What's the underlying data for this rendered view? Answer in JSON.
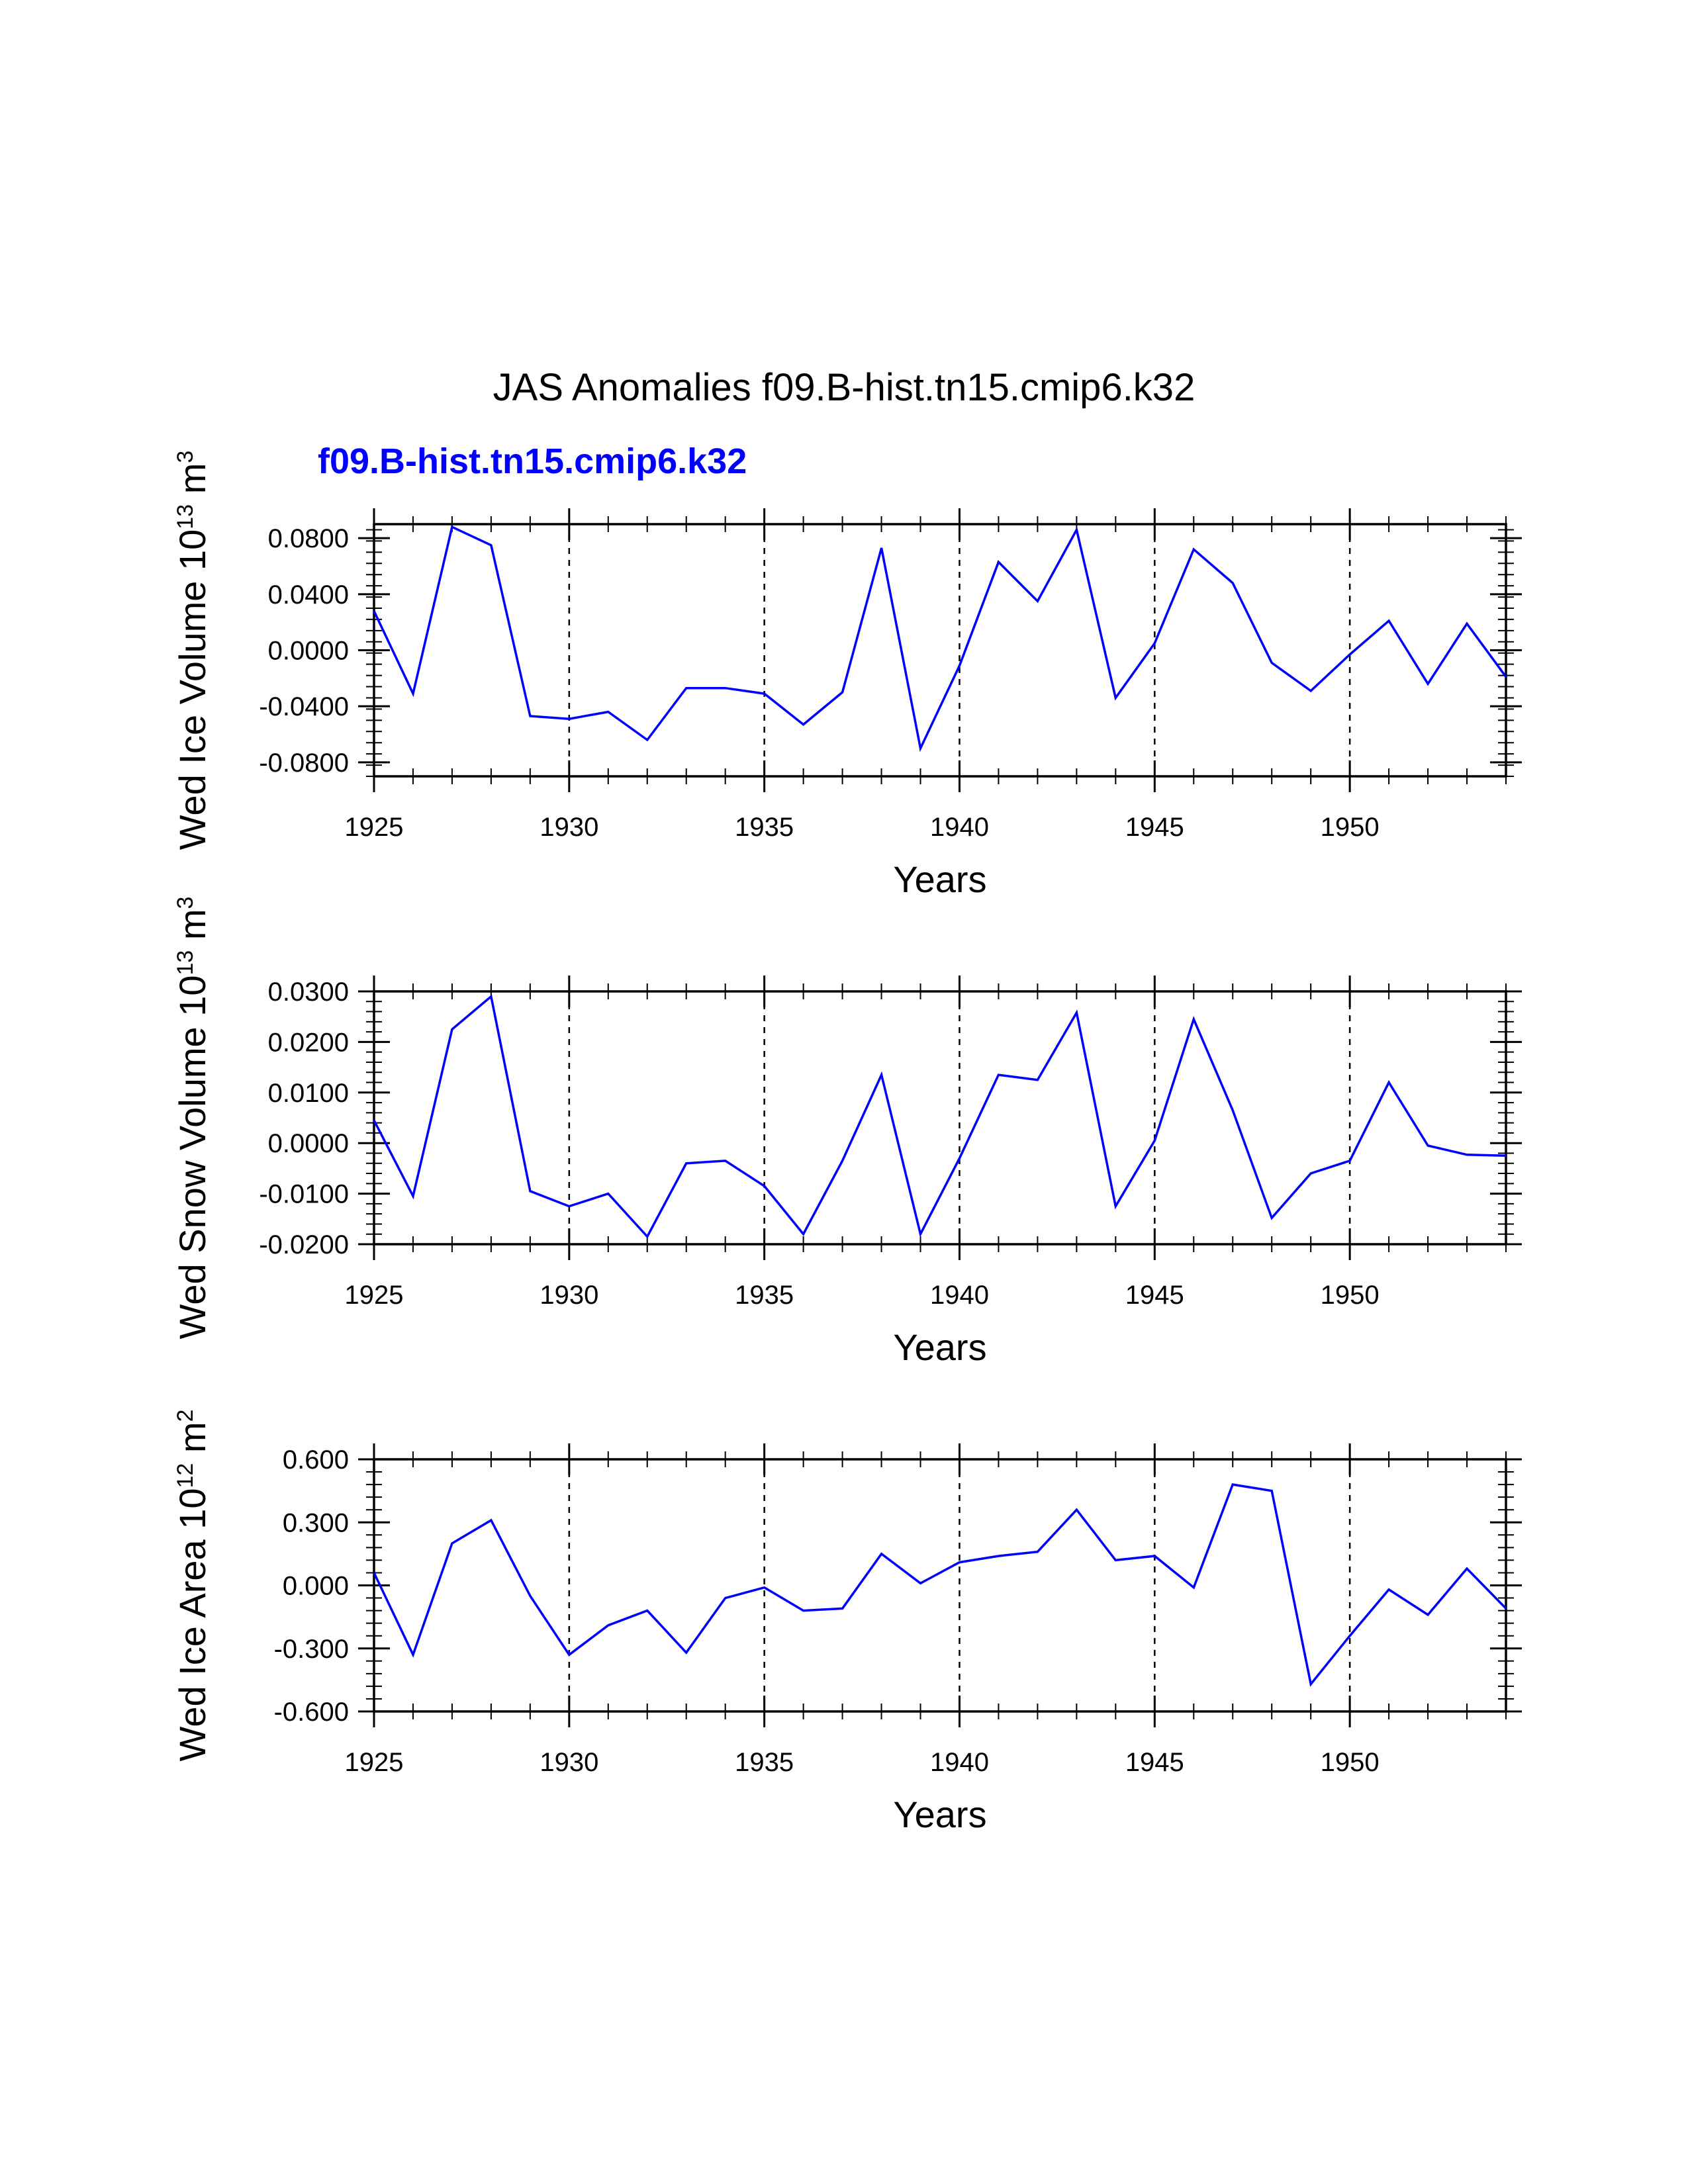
{
  "title": "JAS Anomalies f09.B-hist.tn15.cmip6.k32",
  "subtitle": "f09.B-hist.tn15.cmip6.k32",
  "colors": {
    "line": "#0000ff",
    "subtitle": "#0000ff",
    "axis": "#000000",
    "grid": "#000000"
  },
  "chart_data": [
    {
      "type": "line",
      "ylabel_main": "Wed Ice Volume 10",
      "ylabel_exp": "13",
      "ylabel_unit": " m",
      "ylabel_unit_exp": "3",
      "xlabel": "Years",
      "xlim": [
        1925,
        1954
      ],
      "ylim": [
        -0.09,
        0.09
      ],
      "yticks": [
        -0.08,
        -0.04,
        0.0,
        0.04,
        0.08
      ],
      "ytick_labels": [
        "-0.0800",
        "-0.0400",
        "0.0000",
        "0.0400",
        "0.0800"
      ],
      "xticks": [
        1925,
        1930,
        1935,
        1940,
        1945,
        1950
      ],
      "xtick_labels": [
        "1925",
        "1930",
        "1935",
        "1940",
        "1945",
        "1950"
      ],
      "grid_x": [
        1930,
        1935,
        1940,
        1945,
        1950
      ],
      "series": [
        {
          "name": "f09.B-hist.tn15.cmip6.k32",
          "x": [
            1925,
            1926,
            1927,
            1928,
            1929,
            1930,
            1931,
            1932,
            1933,
            1934,
            1935,
            1936,
            1937,
            1938,
            1939,
            1940,
            1941,
            1942,
            1943,
            1944,
            1945,
            1946,
            1947,
            1948,
            1949,
            1950,
            1951,
            1952,
            1953,
            1954
          ],
          "values": [
            0.028,
            -0.031,
            0.088,
            0.075,
            -0.047,
            -0.049,
            -0.044,
            -0.064,
            -0.027,
            -0.027,
            -0.031,
            -0.053,
            -0.03,
            0.073,
            -0.07,
            -0.011,
            0.063,
            0.035,
            0.086,
            -0.034,
            0.005,
            0.072,
            0.048,
            -0.009,
            -0.029,
            -0.003,
            0.021,
            -0.024,
            0.019,
            -0.019
          ]
        }
      ]
    },
    {
      "type": "line",
      "ylabel_main": "Wed Snow Volume 10",
      "ylabel_exp": "13",
      "ylabel_unit": " m",
      "ylabel_unit_exp": "3",
      "xlabel": "Years",
      "xlim": [
        1925,
        1954
      ],
      "ylim": [
        -0.02,
        0.03
      ],
      "yticks": [
        -0.02,
        -0.01,
        0.0,
        0.01,
        0.02,
        0.03
      ],
      "ytick_labels": [
        "-0.0200",
        "-0.0100",
        "0.0000",
        "0.0100",
        "0.0200",
        "0.0300"
      ],
      "xticks": [
        1925,
        1930,
        1935,
        1940,
        1945,
        1950
      ],
      "xtick_labels": [
        "1925",
        "1930",
        "1935",
        "1940",
        "1945",
        "1950"
      ],
      "grid_x": [
        1930,
        1935,
        1940,
        1945,
        1950
      ],
      "series": [
        {
          "name": "f09.B-hist.tn15.cmip6.k32",
          "x": [
            1925,
            1926,
            1927,
            1928,
            1929,
            1930,
            1931,
            1932,
            1933,
            1934,
            1935,
            1936,
            1937,
            1938,
            1939,
            1940,
            1941,
            1942,
            1943,
            1944,
            1945,
            1946,
            1947,
            1948,
            1949,
            1950,
            1951,
            1952,
            1953,
            1954
          ],
          "values": [
            0.0045,
            -0.0105,
            0.0225,
            0.029,
            -0.0095,
            -0.0125,
            -0.01,
            -0.0185,
            -0.004,
            -0.0035,
            -0.0085,
            -0.018,
            -0.0035,
            0.0135,
            -0.018,
            -0.003,
            0.0135,
            0.0125,
            0.0258,
            -0.0125,
            0.0005,
            0.0245,
            0.0065,
            -0.0148,
            -0.006,
            -0.0035,
            0.012,
            -0.0005,
            -0.0023,
            -0.0025
          ]
        }
      ]
    },
    {
      "type": "line",
      "ylabel_main": "Wed Ice Area 10",
      "ylabel_exp": "12",
      "ylabel_unit": " m",
      "ylabel_unit_exp": "2",
      "xlabel": "Years",
      "xlim": [
        1925,
        1954
      ],
      "ylim": [
        -0.6,
        0.6
      ],
      "yticks": [
        -0.6,
        -0.3,
        0.0,
        0.3,
        0.6
      ],
      "ytick_labels": [
        "-0.600",
        "-0.300",
        "0.000",
        "0.300",
        "0.600"
      ],
      "xticks": [
        1925,
        1930,
        1935,
        1940,
        1945,
        1950
      ],
      "xtick_labels": [
        "1925",
        "1930",
        "1935",
        "1940",
        "1945",
        "1950"
      ],
      "grid_x": [
        1930,
        1935,
        1940,
        1945,
        1950
      ],
      "series": [
        {
          "name": "f09.B-hist.tn15.cmip6.k32",
          "x": [
            1925,
            1926,
            1927,
            1928,
            1929,
            1930,
            1931,
            1932,
            1933,
            1934,
            1935,
            1936,
            1937,
            1938,
            1939,
            1940,
            1941,
            1942,
            1943,
            1944,
            1945,
            1946,
            1947,
            1948,
            1949,
            1950,
            1951,
            1952,
            1953,
            1954
          ],
          "values": [
            0.06,
            -0.33,
            0.2,
            0.31,
            -0.05,
            -0.33,
            -0.19,
            -0.12,
            -0.32,
            -0.06,
            -0.01,
            -0.12,
            -0.11,
            0.15,
            0.01,
            0.11,
            0.14,
            0.16,
            0.36,
            0.12,
            0.14,
            -0.01,
            0.48,
            0.45,
            -0.47,
            -0.24,
            -0.02,
            -0.14,
            0.08,
            -0.11
          ]
        }
      ]
    }
  ]
}
